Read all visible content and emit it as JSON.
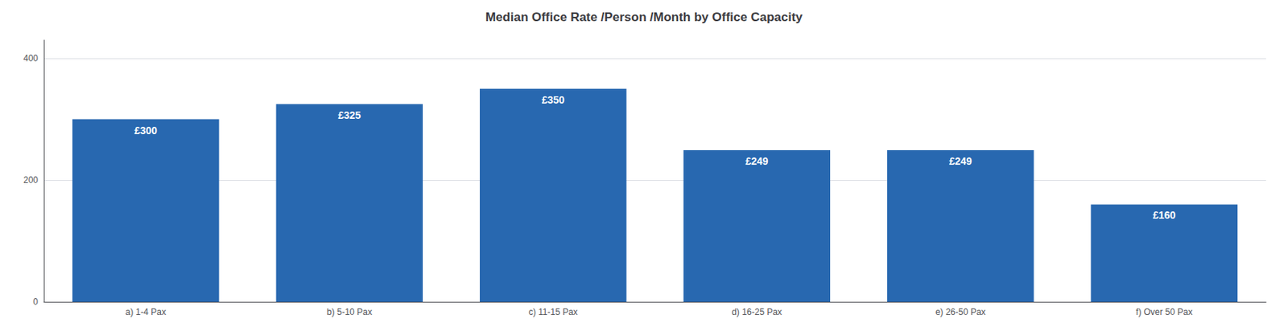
{
  "chart_data": {
    "type": "bar",
    "title": "Median Office Rate /Person /Month by Office Capacity",
    "categories": [
      "a) 1-4 Pax",
      "b) 5-10 Pax",
      "c) 11-15 Pax",
      "d) 16-25 Pax",
      "e) 26-50 Pax",
      "f) Over 50 Pax"
    ],
    "values": [
      300,
      325,
      350,
      249,
      249,
      160
    ],
    "value_labels": [
      "£300",
      "£325",
      "£350",
      "£249",
      "£249",
      "£160"
    ],
    "data_labels": true,
    "color": "#2868B0",
    "ylim": [
      0,
      430
    ],
    "yticks": [
      0,
      200,
      400
    ],
    "grid": true
  }
}
